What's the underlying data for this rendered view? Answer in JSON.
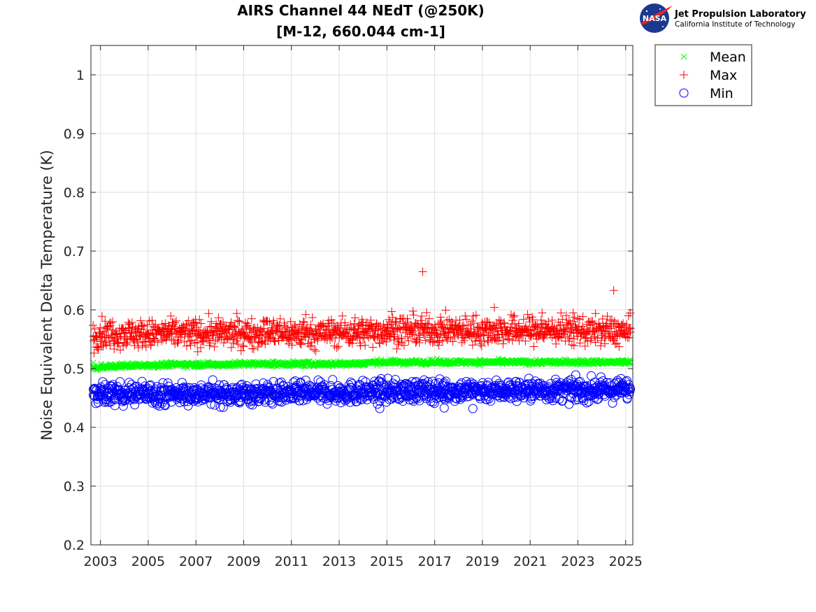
{
  "logo": {
    "badge_text": "NASA",
    "org_name": "Jet Propulsion Laboratory",
    "org_sub": "California Institute of Technology"
  },
  "chart_data": {
    "type": "scatter",
    "title": [
      "AIRS Channel 44 NEdT (@250K)",
      "[M-12, 660.044 cm-1]"
    ],
    "xlabel": "",
    "ylabel": "Noise Equivalent Delta Temperature (K)",
    "xlim": [
      2002.6,
      2025.3
    ],
    "ylim": [
      0.2,
      1.05
    ],
    "x_ticks": [
      2003,
      2005,
      2007,
      2009,
      2011,
      2013,
      2015,
      2017,
      2019,
      2021,
      2023,
      2025
    ],
    "x_tick_labels": [
      "2003",
      "2005",
      "2007",
      "2009",
      "2011",
      "2013",
      "2015",
      "2017",
      "2019",
      "2021",
      "2023",
      "2025"
    ],
    "y_ticks": [
      0.2,
      0.3,
      0.4,
      0.5,
      0.6,
      0.7,
      0.8,
      0.9,
      1.0
    ],
    "y_tick_labels": [
      "0.2",
      "0.3",
      "0.4",
      "0.5",
      "0.6",
      "0.7",
      "0.8",
      "0.9",
      "1"
    ],
    "grid": true,
    "legend_position": "outside-top-right",
    "series": [
      {
        "name": "Mean",
        "marker": "x",
        "color": "#00ff00",
        "x": [
          2002.7,
          2003.2,
          2004.0,
          2005.0,
          2006.0,
          2007.0,
          2008.0,
          2009.0,
          2010.0,
          2011.0,
          2012.0,
          2013.0,
          2014.0,
          2014.5,
          2015.0,
          2016.0,
          2017.0,
          2018.0,
          2019.0,
          2020.0,
          2021.0,
          2022.0,
          2023.0,
          2024.0,
          2025.2
        ],
        "y": [
          0.501,
          0.503,
          0.505,
          0.506,
          0.507,
          0.507,
          0.507,
          0.508,
          0.508,
          0.508,
          0.508,
          0.508,
          0.509,
          0.511,
          0.511,
          0.511,
          0.511,
          0.511,
          0.511,
          0.511,
          0.511,
          0.511,
          0.511,
          0.511,
          0.511
        ]
      },
      {
        "name": "Max",
        "marker": "+",
        "color": "#ff0000",
        "x": [
          2002.7,
          2003.0,
          2004.0,
          2005.0,
          2006.0,
          2007.0,
          2008.0,
          2009.0,
          2010.0,
          2011.0,
          2011.6,
          2012.0,
          2013.0,
          2014.0,
          2015.0,
          2015.2,
          2016.0,
          2016.5,
          2017.0,
          2018.0,
          2019.0,
          2019.5,
          2020.0,
          2021.0,
          2021.5,
          2022.0,
          2022.8,
          2023.0,
          2024.0,
          2024.5,
          2025.2
        ],
        "y": [
          0.555,
          0.56,
          0.56,
          0.558,
          0.56,
          0.56,
          0.56,
          0.56,
          0.562,
          0.56,
          0.592,
          0.56,
          0.562,
          0.562,
          0.565,
          0.597,
          0.565,
          0.665,
          0.565,
          0.565,
          0.565,
          0.604,
          0.565,
          0.565,
          0.595,
          0.565,
          0.595,
          0.565,
          0.565,
          0.633,
          0.562
        ]
      },
      {
        "name": "Min",
        "marker": "o",
        "color": "#0000ff",
        "x": [
          2002.7,
          2003.0,
          2004.0,
          2005.0,
          2006.0,
          2007.0,
          2008.0,
          2009.0,
          2010.0,
          2011.0,
          2012.0,
          2013.0,
          2014.0,
          2014.7,
          2015.0,
          2016.0,
          2017.0,
          2017.4,
          2018.0,
          2018.6,
          2019.0,
          2020.0,
          2021.0,
          2022.0,
          2023.0,
          2024.0,
          2025.2
        ],
        "y": [
          0.455,
          0.457,
          0.457,
          0.457,
          0.457,
          0.457,
          0.457,
          0.457,
          0.458,
          0.458,
          0.458,
          0.459,
          0.46,
          0.432,
          0.461,
          0.462,
          0.462,
          0.433,
          0.462,
          0.432,
          0.463,
          0.463,
          0.463,
          0.463,
          0.463,
          0.463,
          0.465
        ]
      }
    ]
  }
}
